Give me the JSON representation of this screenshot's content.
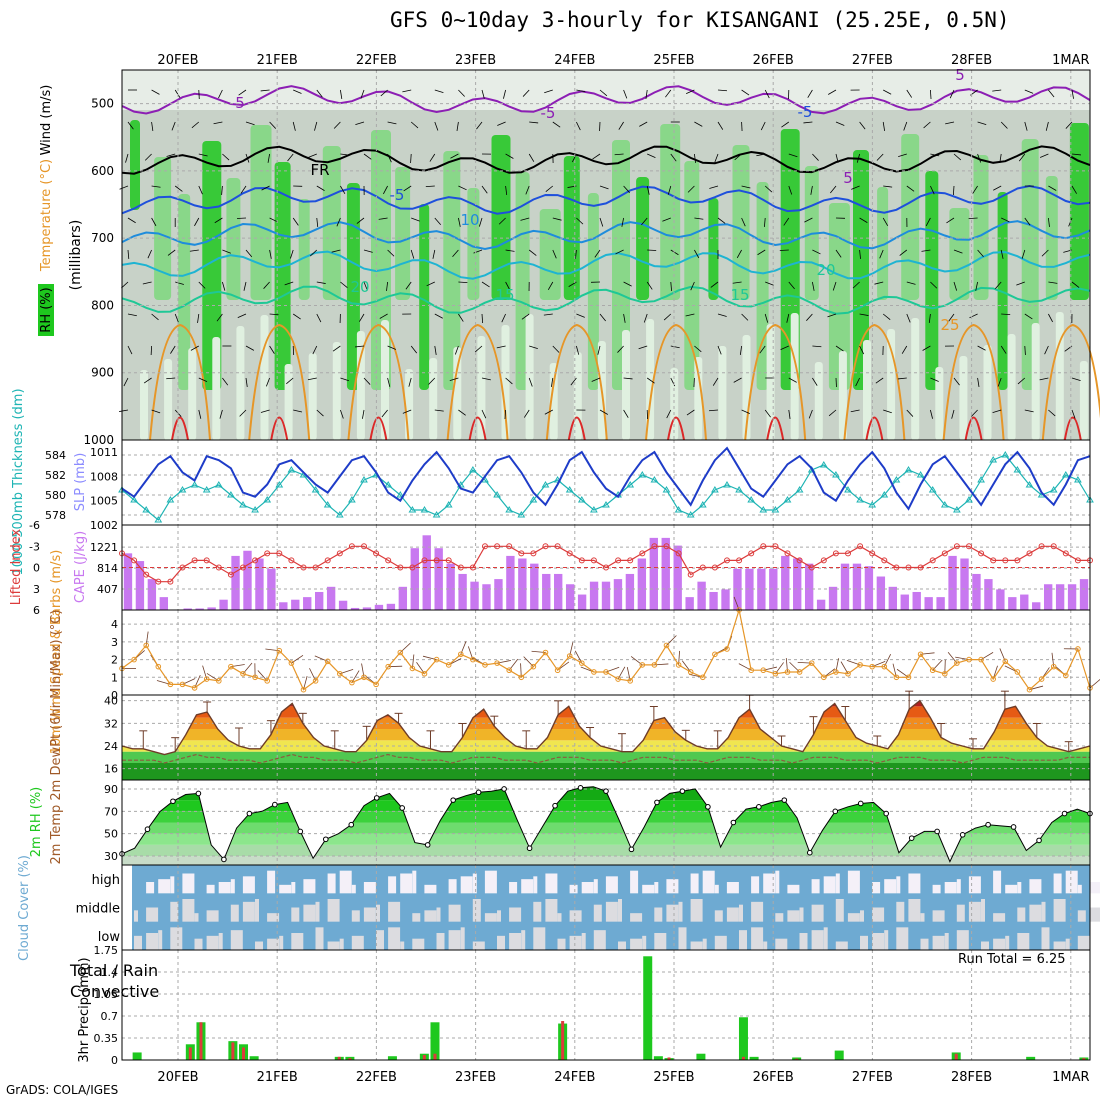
{
  "title": "GFS 0~10day 3-hourly for KISANGANI (25.25E, 0.5N)",
  "footer": "GrADS: COLA/IGES",
  "run_total": "Run Total = 6.25",
  "colors": {
    "rh_green": "#1ec81e",
    "rh_light": "#e0f0e0",
    "rh_gray": "#c8d2c8",
    "temp_purple": "#8c1eb4",
    "temp_blue": "#1e50dc",
    "temp_cyan": "#1eb4d2",
    "temp_teal": "#1ec896",
    "temp_orange": "#e69628",
    "temp_red": "#dc2828",
    "slp_blue": "#1e3cc8",
    "thick_cyan": "#1eb4b4",
    "li_red": "#dc3c3c",
    "cape_purple": "#c878f0",
    "wind_orange": "#e69628",
    "cloud_blue": "#6eaad2",
    "cloud_light": "#dcdce0",
    "precip_green": "#1ec81e",
    "precip_red": "#dc3c3c"
  },
  "chart_data": [
    {
      "type": "heatmap",
      "panel": "sounding",
      "ylabel_parts": [
        "RH (%)",
        "Temperature (°C)",
        "Wind (m/s)"
      ],
      "ylabel_right": "(millibars)",
      "ylim": [
        1000,
        450
      ],
      "y_ticks": [
        500,
        600,
        700,
        800,
        900,
        1000
      ],
      "x_labels": [
        "20FEB",
        "21FEB",
        "22FEB",
        "23FEB",
        "24FEB",
        "25FEB",
        "26FEB",
        "27FEB",
        "28FEB",
        "1MAR"
      ],
      "contour_labels": [
        "5",
        "-5",
        "FR",
        "-5",
        "10",
        "15",
        "20",
        "15",
        "20",
        "25",
        "5",
        "-5",
        "5"
      ]
    },
    {
      "type": "line",
      "panel": "slp_thickness",
      "ylabel_left": "1000-500mb Thickness (dm)",
      "ylabel_right": "SLP (mb)",
      "left_ticks": [
        578,
        580,
        582,
        584
      ],
      "right_ticks": [
        1002,
        1005,
        1008,
        1011
      ],
      "series": [
        {
          "name": "SLP (mb)",
          "ylim": [
            1002,
            1012.5
          ],
          "values": [
            1006.5,
            1005.5,
            1007.5,
            1009.5,
            1010.5,
            1008.5,
            1007.5,
            1010.5,
            1010.0,
            1009.0,
            1006.0,
            1005.5,
            1007.0,
            1009.5,
            1010.0,
            1008.5,
            1007.0,
            1006.0,
            1008.0,
            1010.0,
            1010.5,
            1008.5,
            1006.0,
            1005.0,
            1007.5,
            1009.5,
            1011.0,
            1009.0,
            1006.5,
            1006.0,
            1008.0,
            1010.0,
            1010.5,
            1008.5,
            1006.0,
            1004.5,
            1007.0,
            1010.0,
            1011.0,
            1008.5,
            1006.5,
            1005.5,
            1008.0,
            1010.0,
            1011.0,
            1008.5,
            1006.5,
            1004.5,
            1007.5,
            1010.0,
            1011.5,
            1009.0,
            1006.5,
            1005.5,
            1007.5,
            1009.5,
            1010.5,
            1009.0,
            1006.0,
            1005.0,
            1007.5,
            1009.5,
            1011.0,
            1009.0,
            1006.0,
            1004.0,
            1007.0,
            1009.5,
            1010.5,
            1008.5,
            1006.5,
            1004.5,
            1007.0,
            1009.5,
            1011.0,
            1009.0,
            1006.0,
            1004.5,
            1007.0,
            1010.0,
            1010.5
          ]
        },
        {
          "name": "1000-500mb Thickness (dm)",
          "ylim": [
            577,
            585.5
          ],
          "values": [
            580.5,
            579.5,
            578.5,
            577.5,
            579.5,
            580.5,
            581.0,
            580.5,
            581.0,
            580.0,
            579.0,
            578.5,
            579.5,
            581.0,
            582.5,
            582.0,
            580.5,
            579.0,
            578.0,
            579.5,
            581.5,
            582.0,
            581.0,
            580.0,
            578.5,
            578.5,
            578.0,
            579.0,
            581.0,
            582.5,
            581.5,
            580.0,
            578.5,
            578.0,
            579.5,
            581.0,
            581.5,
            580.5,
            579.5,
            578.5,
            579.0,
            580.0,
            581.0,
            582.0,
            581.5,
            580.5,
            578.5,
            578.0,
            579.0,
            580.5,
            581.0,
            580.5,
            579.5,
            578.5,
            578.5,
            579.5,
            580.5,
            582.5,
            583.0,
            582.0,
            580.5,
            579.5,
            579.0,
            580.0,
            581.5,
            582.5,
            582.0,
            580.5,
            579.0,
            578.5,
            579.5,
            581.5,
            583.5,
            584.0,
            582.5,
            581.0,
            580.0,
            580.5,
            582.0,
            581.5,
            579.5
          ]
        }
      ]
    },
    {
      "type": "bar",
      "panel": "cape_li",
      "ylabel_left": "Lifted Index",
      "ylabel_right": "CAPE (J/kg)",
      "left_ticks": [
        "-6",
        "-3",
        "0",
        "3",
        "6"
      ],
      "right_ticks": [
        407,
        814,
        1221
      ],
      "series": [
        {
          "name": "CAPE (J/kg)",
          "ylim": [
            0,
            1650
          ],
          "values": [
            1100,
            950,
            600,
            250,
            0,
            30,
            30,
            50,
            200,
            1050,
            1150,
            1000,
            800,
            150,
            200,
            250,
            350,
            450,
            180,
            40,
            50,
            100,
            120,
            450,
            1200,
            1450,
            1200,
            900,
            700,
            550,
            500,
            600,
            1050,
            1000,
            900,
            700,
            700,
            500,
            300,
            550,
            550,
            600,
            700,
            1000,
            1400,
            1400,
            1250,
            250,
            550,
            350,
            400,
            800,
            800,
            800,
            800,
            1050,
            1000,
            900,
            200,
            450,
            900,
            900,
            850,
            650,
            450,
            300,
            350,
            250,
            250,
            1050,
            1000,
            700,
            600,
            400,
            250,
            300,
            150,
            500,
            500,
            500,
            600
          ]
        },
        {
          "name": "Lifted Index",
          "ylim": [
            6,
            -6
          ],
          "values": [
            -2,
            -1,
            1,
            2,
            2,
            0,
            -1,
            -1,
            0,
            1,
            0,
            -1,
            -2,
            -2,
            -1,
            0,
            0,
            -1,
            -2,
            -3,
            -3,
            -2,
            -1,
            0,
            0,
            -1,
            -1,
            -1,
            0,
            0,
            -3,
            -3,
            -3,
            -2,
            -2,
            -3,
            -3,
            -2,
            -1,
            -1,
            0,
            -1,
            -1,
            -2,
            -3,
            -3,
            -2,
            1,
            0,
            0,
            -1,
            -1,
            -2,
            -3,
            -3,
            -2,
            -1,
            0,
            -1,
            -2,
            -2,
            -3,
            -2,
            -1,
            0,
            0,
            0,
            -1,
            -2,
            -3,
            -3,
            -2,
            -1,
            -1,
            -1,
            -2,
            -3,
            -3,
            -2,
            -1,
            -1
          ]
        }
      ]
    },
    {
      "type": "line",
      "panel": "wind10m",
      "ylabel": "10m Wind Speed & Barbs (m/s)",
      "ylim": [
        0,
        4.8
      ],
      "y_ticks": [
        0,
        1,
        2,
        3,
        4
      ],
      "series": [
        {
          "name": "10m Wind Speed",
          "values": [
            1.5,
            2.0,
            2.8,
            1.6,
            0.6,
            0.6,
            0.4,
            0.9,
            0.8,
            1.6,
            1.2,
            1.0,
            0.8,
            2.5,
            1.8,
            0.3,
            0.8,
            1.9,
            1.2,
            0.7,
            1.0,
            0.6,
            1.6,
            2.4,
            1.5,
            1.2,
            2.0,
            1.7,
            2.3,
            2.0,
            1.7,
            1.8,
            1.4,
            1.0,
            1.6,
            2.4,
            1.4,
            2.2,
            1.8,
            1.3,
            1.3,
            0.9,
            0.8,
            1.7,
            1.7,
            2.8,
            1.7,
            1.3,
            1.0,
            2.3,
            2.6,
            4.8,
            1.4,
            1.4,
            1.2,
            1.3,
            1.3,
            1.8,
            1.0,
            1.3,
            1.2,
            1.7,
            1.6,
            1.6,
            1.0,
            1.0,
            2.3,
            1.4,
            1.2,
            1.8,
            2.0,
            2.0,
            0.9,
            1.9,
            1.3,
            0.3,
            0.9,
            1.6,
            1.1,
            2.6,
            0.4
          ]
        }
      ]
    },
    {
      "type": "area",
      "panel": "temp2m",
      "ylabel": "2m Temp 2m DewPt (6hr Min/Max) (°C)",
      "ylim": [
        12,
        42
      ],
      "y_ticks": [
        16,
        24,
        32,
        40
      ],
      "series": [
        {
          "name": "2m Temp",
          "values": [
            24,
            23,
            23,
            22,
            21,
            22,
            28,
            35,
            36,
            30,
            26,
            24,
            23,
            23,
            28,
            36,
            39,
            32,
            27,
            24,
            23,
            22,
            22,
            26,
            33,
            35,
            32,
            27,
            24,
            23,
            22,
            22,
            27,
            34,
            37,
            31,
            27,
            24,
            23,
            23,
            27,
            35,
            38,
            31,
            27,
            24,
            23,
            22,
            22,
            26,
            33,
            34,
            29,
            26,
            24,
            23,
            23,
            27,
            34,
            37,
            30,
            27,
            24,
            23,
            22,
            28,
            36,
            39,
            33,
            27,
            25,
            24,
            23,
            28,
            37,
            40,
            34,
            27,
            25,
            24,
            23,
            23,
            29,
            37,
            38,
            32,
            27,
            24,
            23,
            22,
            23,
            24
          ]
        },
        {
          "name": "2m DewPt",
          "values": [
            19,
            19,
            19,
            19,
            18,
            19,
            20,
            21,
            20,
            20,
            19,
            19,
            19,
            18,
            19,
            20,
            21,
            20,
            20,
            19,
            19,
            19,
            18,
            19,
            20,
            21,
            20,
            20,
            19,
            19,
            19,
            18,
            19,
            20,
            20,
            20,
            19,
            19,
            19,
            18,
            19,
            20,
            20,
            20,
            19,
            19,
            19,
            18,
            19,
            20,
            20,
            20,
            19,
            19,
            19,
            18,
            19,
            20,
            20,
            20,
            19,
            19,
            19,
            18,
            19,
            20,
            20,
            20,
            19,
            19,
            19,
            18,
            19,
            20,
            20,
            20,
            19,
            19,
            19,
            18,
            19,
            20,
            20,
            20,
            19,
            19,
            19,
            19,
            19,
            20,
            20,
            20
          ]
        }
      ]
    },
    {
      "type": "area",
      "panel": "rh2m",
      "ylabel": "2m RH (%)",
      "ylim": [
        22,
        98
      ],
      "y_ticks": [
        30,
        50,
        70,
        90
      ],
      "series": [
        {
          "name": "2m RH",
          "values": [
            32,
            37,
            54,
            70,
            79,
            85,
            86,
            40,
            27,
            55,
            68,
            70,
            76,
            78,
            52,
            28,
            45,
            50,
            58,
            75,
            82,
            86,
            73,
            42,
            40,
            62,
            80,
            84,
            87,
            88,
            90,
            63,
            37,
            56,
            75,
            88,
            91,
            92,
            88,
            63,
            36,
            56,
            78,
            86,
            88,
            90,
            74,
            38,
            60,
            72,
            74,
            78,
            80,
            64,
            33,
            53,
            70,
            74,
            77,
            78,
            68,
            33,
            46,
            52,
            52,
            25,
            49,
            55,
            58,
            57,
            56,
            35,
            44,
            60,
            68,
            72,
            68
          ]
        }
      ]
    },
    {
      "type": "heatmap",
      "panel": "cloud",
      "ylabel": "Cloud Cover (%)",
      "rows": [
        "high",
        "middle",
        "low"
      ]
    },
    {
      "type": "bar",
      "panel": "precip",
      "ylabel": "3hr Precip (mm)",
      "left_label": "Total / Rain",
      "left_label2": "Convective",
      "ylim": [
        0,
        1.75
      ],
      "y_ticks": [
        "0",
        "0.35",
        "0.7",
        "1.05",
        "1.4",
        "1.75"
      ],
      "series": [
        {
          "name": "Total",
          "values": [
            0,
            0.12,
            0,
            0,
            0,
            0,
            0.25,
            0.6,
            0,
            0,
            0.3,
            0.25,
            0.06,
            0,
            0,
            0,
            0,
            0,
            0,
            0,
            0.05,
            0.05,
            0,
            0,
            0,
            0.06,
            0,
            0,
            0.1,
            0.6,
            0,
            0,
            0,
            0,
            0,
            0,
            0,
            0,
            0,
            0,
            0,
            0.58,
            0,
            0,
            0,
            0,
            0,
            0,
            0,
            1.65,
            0.06,
            0.03,
            0,
            0,
            0.1,
            0,
            0,
            0,
            0.68,
            0.05,
            0,
            0,
            0,
            0.04,
            0,
            0,
            0,
            0.15,
            0,
            0,
            0,
            0,
            0,
            0,
            0,
            0,
            0,
            0,
            0.12,
            0,
            0,
            0,
            0,
            0,
            0,
            0.05,
            0,
            0,
            0,
            0,
            0.04
          ]
        },
        {
          "name": "Convective",
          "values": [
            0,
            0,
            0,
            0,
            0,
            0,
            0.2,
            0.6,
            0,
            0,
            0.28,
            0.2,
            0,
            0,
            0,
            0,
            0,
            0,
            0,
            0,
            0.05,
            0.03,
            0,
            0,
            0,
            0,
            0,
            0,
            0.08,
            0.1,
            0,
            0,
            0,
            0,
            0,
            0,
            0,
            0,
            0,
            0,
            0,
            0.62,
            0,
            0,
            0,
            0,
            0,
            0,
            0,
            0,
            0,
            0.04,
            0,
            0,
            0,
            0,
            0,
            0,
            0.05,
            0,
            0,
            0,
            0,
            0.02,
            0,
            0,
            0,
            0,
            0,
            0,
            0,
            0,
            0,
            0,
            0,
            0,
            0,
            0,
            0.1,
            0,
            0,
            0,
            0,
            0,
            0,
            0,
            0,
            0,
            0,
            0,
            0.03
          ]
        }
      ]
    }
  ]
}
